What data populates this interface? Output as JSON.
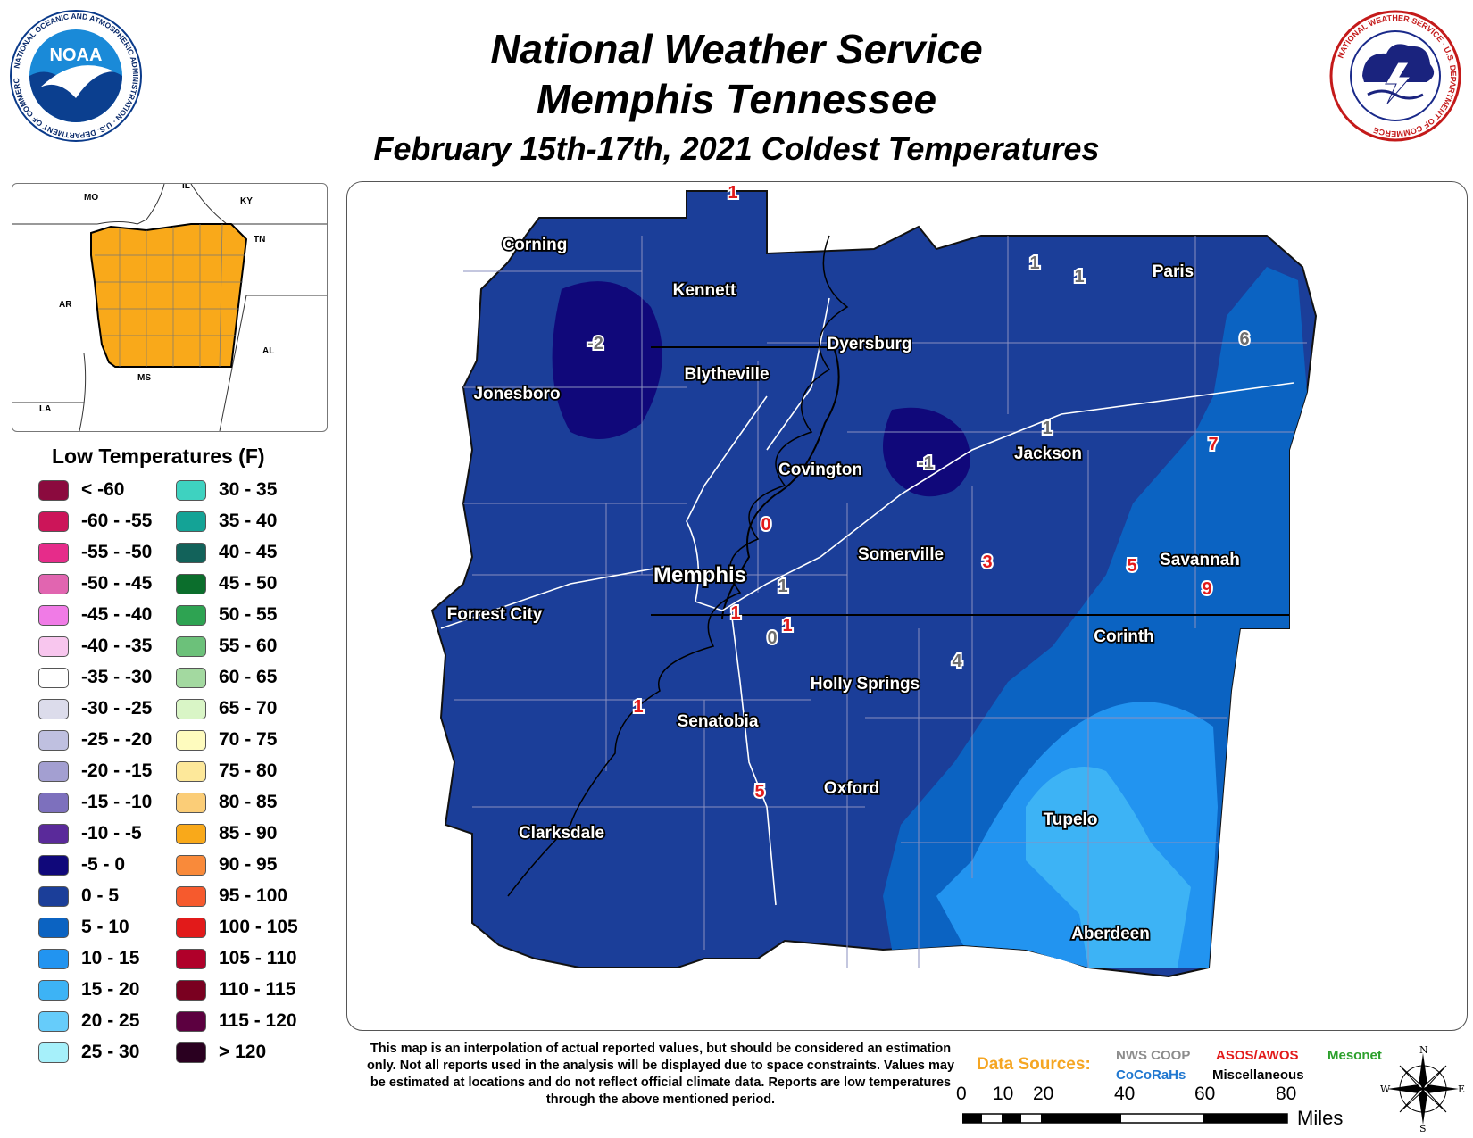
{
  "header": {
    "line1": "National Weather Service",
    "line2": "Memphis Tennessee",
    "line3": "February 15th-17th, 2021 Coldest Temperatures"
  },
  "logos": {
    "noaa_center": "NOAA",
    "noaa_ring": "NATIONAL OCEANIC AND ATMOSPHERIC ADMINISTRATION · U.S. DEPARTMENT OF COMMERCE",
    "nws_ring": "NATIONAL WEATHER SERVICE · U.S. DEPARTMENT OF COMMERCE"
  },
  "inset": {
    "states": [
      "MO",
      "IL",
      "KY",
      "TN",
      "AR",
      "AL",
      "MS",
      "LA"
    ],
    "highlight_color": "#F9A91A"
  },
  "legend": {
    "title": "Low Temperatures (F)",
    "items": [
      {
        "label": "< -60",
        "color": "#8B0A3E"
      },
      {
        "label": "-60 - -55",
        "color": "#CC1559"
      },
      {
        "label": "-55 - -50",
        "color": "#E62C8A"
      },
      {
        "label": "-50 - -45",
        "color": "#E165B0"
      },
      {
        "label": "-45 - -40",
        "color": "#F07BE6"
      },
      {
        "label": "-40 - -35",
        "color": "#F8C6EE"
      },
      {
        "label": "-35 - -30",
        "color": "#FFFFFF"
      },
      {
        "label": "-30 - -25",
        "color": "#DCDCEB"
      },
      {
        "label": "-25 - -20",
        "color": "#BFC0E0"
      },
      {
        "label": "-20 - -15",
        "color": "#A39FD1"
      },
      {
        "label": "-15 - -10",
        "color": "#7D70BD"
      },
      {
        "label": "-10 - -5",
        "color": "#5A2A9A"
      },
      {
        "label": "-5 - 0",
        "color": "#10087A"
      },
      {
        "label": "0 - 5",
        "color": "#1B3E99"
      },
      {
        "label": "5 - 10",
        "color": "#0B63C2"
      },
      {
        "label": "10 - 15",
        "color": "#2294F0"
      },
      {
        "label": "15 - 20",
        "color": "#3DB3F5"
      },
      {
        "label": "20 - 25",
        "color": "#66CCFA"
      },
      {
        "label": "25 - 30",
        "color": "#A6F0FA"
      },
      {
        "label": "30 - 35",
        "color": "#3ED2C0"
      },
      {
        "label": "35 - 40",
        "color": "#14A396"
      },
      {
        "label": "40 - 45",
        "color": "#12625A"
      },
      {
        "label": "45 - 50",
        "color": "#0B6E2C"
      },
      {
        "label": "50 - 55",
        "color": "#2EA352"
      },
      {
        "label": "55 - 60",
        "color": "#6CC17A"
      },
      {
        "label": "60 - 65",
        "color": "#A3D9A0"
      },
      {
        "label": "65 - 70",
        "color": "#D9F5C6"
      },
      {
        "label": "70 - 75",
        "color": "#FEFBBE"
      },
      {
        "label": "75 - 80",
        "color": "#FDE89A"
      },
      {
        "label": "80 - 85",
        "color": "#FBCD77"
      },
      {
        "label": "85 - 90",
        "color": "#F9A91A"
      },
      {
        "label": "90 - 95",
        "color": "#F98A3A"
      },
      {
        "label": "95 - 100",
        "color": "#F65A2D"
      },
      {
        "label": "100 - 105",
        "color": "#E21A1A"
      },
      {
        "label": "105 - 110",
        "color": "#B0002A"
      },
      {
        "label": "110 - 115",
        "color": "#7A0020"
      },
      {
        "label": "115 - 120",
        "color": "#5C0040"
      },
      {
        "label": "> 120",
        "color": "#2A0020"
      }
    ]
  },
  "map": {
    "cities": [
      "Corning",
      "Kennett",
      "Paris",
      "Dyersburg",
      "Blytheville",
      "Jonesboro",
      "Jackson",
      "Covington",
      "Somerville",
      "Savannah",
      "Memphis",
      "Forrest City",
      "Corinth",
      "Holly Springs",
      "Senatobia",
      "Oxford",
      "Clarksdale",
      "Tupelo",
      "Aberdeen"
    ],
    "obs": [
      {
        "value": "1",
        "network": "ASOS/AWOS"
      },
      {
        "value": "1",
        "network": "NWS COOP"
      },
      {
        "value": "1",
        "network": "NWS COOP"
      },
      {
        "value": "-2",
        "network": "NWS COOP"
      },
      {
        "value": "6",
        "network": "NWS COOP"
      },
      {
        "value": "1",
        "network": "NWS COOP"
      },
      {
        "value": "7",
        "network": "ASOS/AWOS"
      },
      {
        "value": "-1",
        "network": "NWS COOP"
      },
      {
        "value": "0",
        "network": "ASOS/AWOS"
      },
      {
        "value": "3",
        "network": "ASOS/AWOS"
      },
      {
        "value": "5",
        "network": "ASOS/AWOS"
      },
      {
        "value": "9",
        "network": "ASOS/AWOS"
      },
      {
        "value": "1",
        "network": "NWS COOP"
      },
      {
        "value": "1",
        "network": "ASOS/AWOS"
      },
      {
        "value": "1",
        "network": "ASOS/AWOS"
      },
      {
        "value": "0",
        "network": "NWS COOP"
      },
      {
        "value": "4",
        "network": "NWS COOP"
      },
      {
        "value": "1",
        "network": "ASOS/AWOS"
      },
      {
        "value": "5",
        "network": "ASOS/AWOS"
      }
    ]
  },
  "disclaimer": "This map is an interpolation of actual reported values, but should be considered an estimation only. Not all reports used in the analysis will be displayed due to space constraints. Values may be estimated at locations and do not reflect official climate data. Reports are low temperatures through the above mentioned period.",
  "sources": {
    "label": "Data Sources:",
    "nws_coop": "NWS COOP",
    "asos": "ASOS/AWOS",
    "mesonet": "Mesonet",
    "cocorahs": "CoCoRaHs",
    "misc": "Miscellaneous",
    "colors": {
      "label": "#F5A623",
      "nws_coop": "#8C8C8C",
      "asos": "#E21A1A",
      "mesonet": "#2CA02C",
      "cocorahs": "#1F77D0",
      "misc": "#000000"
    }
  },
  "scale": {
    "ticks": [
      "0",
      "10",
      "20",
      "40",
      "60",
      "80"
    ],
    "unit": "Miles"
  },
  "compass": {
    "n": "N",
    "e": "E",
    "s": "S",
    "w": "W"
  }
}
